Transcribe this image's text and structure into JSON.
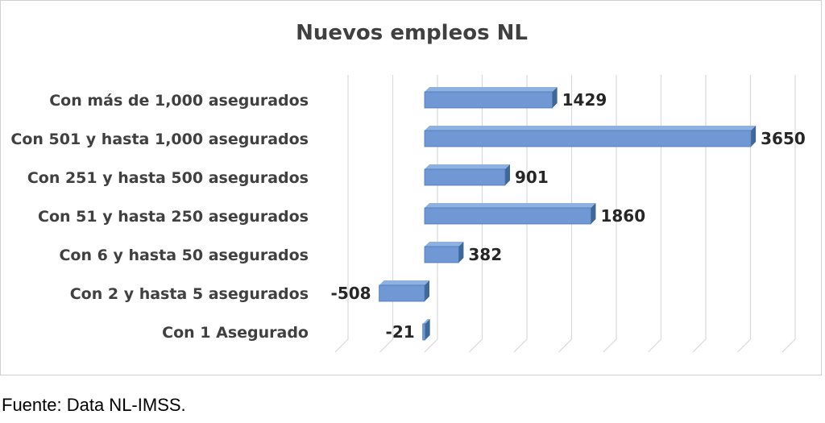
{
  "chart_data": {
    "type": "bar",
    "orientation": "horizontal",
    "title": "Nuevos empleos NL",
    "categories": [
      "Con más de 1,000 asegurados",
      "Con 501 y hasta 1,000 asegurados",
      "Con 251 y hasta 500 asegurados",
      "Con 51 y hasta 250 asegurados",
      "Con 6 y hasta 50 asegurados",
      "Con 2 y hasta 5 asegurados",
      "Con 1 Asegurado"
    ],
    "values": [
      1429,
      3650,
      901,
      1860,
      382,
      -508,
      -21
    ],
    "value_labels": [
      "1429",
      "3650",
      "901",
      "1860",
      "382",
      "-508",
      "-21"
    ],
    "xlim": [
      -1000,
      4000
    ],
    "grid": true,
    "legend": false,
    "bar_color": "#6f98d4",
    "bar_side_color": "#3f6797",
    "bar_top_color": "#8fb1e0"
  },
  "footer": {
    "source": "Fuente: Data NL-IMSS."
  }
}
